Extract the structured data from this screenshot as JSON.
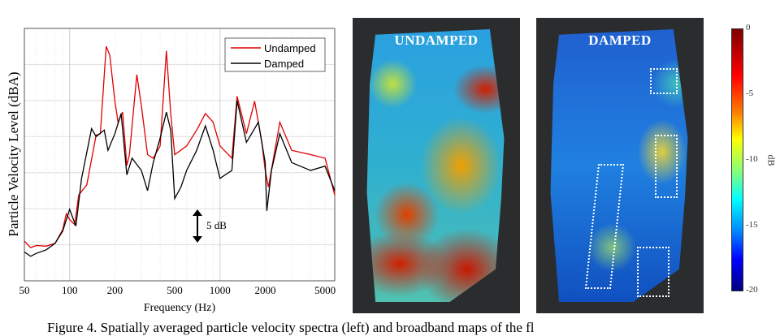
{
  "chart_data": {
    "type": "line",
    "xlabel": "Frequency (Hz)",
    "ylabel": "Particle Velocity Level (dBA)",
    "xscale": "log",
    "xlim": [
      50,
      5800
    ],
    "ylim": [
      0,
      35
    ],
    "x_ticks": [
      50,
      100,
      200,
      500,
      1000,
      2000,
      5000
    ],
    "y_grid_step": 5,
    "grid": true,
    "legend_position": "top-right",
    "annotation": "5 dB",
    "series": [
      {
        "name": "Undamped",
        "color": "#e00000",
        "x": [
          50,
          55,
          60,
          70,
          80,
          90,
          95,
          100,
          108,
          115,
          130,
          150,
          160,
          175,
          185,
          200,
          210,
          225,
          240,
          250,
          280,
          300,
          330,
          360,
          400,
          440,
          470,
          500,
          600,
          700,
          800,
          900,
          1000,
          1200,
          1300,
          1500,
          1700,
          1900,
          2000,
          2100,
          2500,
          3000,
          4000,
          5000,
          5800
        ],
        "y": [
          5.5,
          4.6,
          4.9,
          4.8,
          5.2,
          7.1,
          9.3,
          8.5,
          7.8,
          11.9,
          13.3,
          20.2,
          20.4,
          32.5,
          31.3,
          24.9,
          22.0,
          23.4,
          16.0,
          17.5,
          28.6,
          24.3,
          17.5,
          17.0,
          18.7,
          31.9,
          23.2,
          17.5,
          18.7,
          20.9,
          23.2,
          22.0,
          18.7,
          17.0,
          25.6,
          20.4,
          24.9,
          19.2,
          15.3,
          13.0,
          22.0,
          18.1,
          17.5,
          17.0,
          11.9
        ]
      },
      {
        "name": "Damped",
        "color": "#000000",
        "x": [
          50,
          55,
          60,
          70,
          80,
          90,
          100,
          110,
          120,
          140,
          150,
          170,
          180,
          200,
          220,
          240,
          260,
          300,
          330,
          360,
          400,
          440,
          470,
          500,
          550,
          600,
          700,
          800,
          900,
          1000,
          1200,
          1300,
          1500,
          1800,
          2000,
          2050,
          2200,
          2500,
          3000,
          4000,
          5000,
          5800
        ],
        "y": [
          4.0,
          3.4,
          3.8,
          4.3,
          5.2,
          6.9,
          9.9,
          7.6,
          14.2,
          21.1,
          20.0,
          20.9,
          18.1,
          20.4,
          23.2,
          14.7,
          17.0,
          15.3,
          12.5,
          16.4,
          19.8,
          23.4,
          20.9,
          11.4,
          13.0,
          15.3,
          18.1,
          21.5,
          18.1,
          14.2,
          15.3,
          25.0,
          19.2,
          22.0,
          16.4,
          9.7,
          15.3,
          20.4,
          16.4,
          15.3,
          15.9,
          12.5
        ]
      }
    ]
  },
  "maps": {
    "left_label": "UNDAMPED",
    "right_label": "DAMPED",
    "colorbar": {
      "unit": "dB",
      "ticks": [
        "0",
        "-5",
        "-10",
        "-15",
        "-20"
      ],
      "colormap": "jet",
      "range": [
        -20,
        0
      ]
    }
  },
  "caption": "Figure 4. Spatially averaged particle velocity spectra (left) and broadband maps of the fl"
}
